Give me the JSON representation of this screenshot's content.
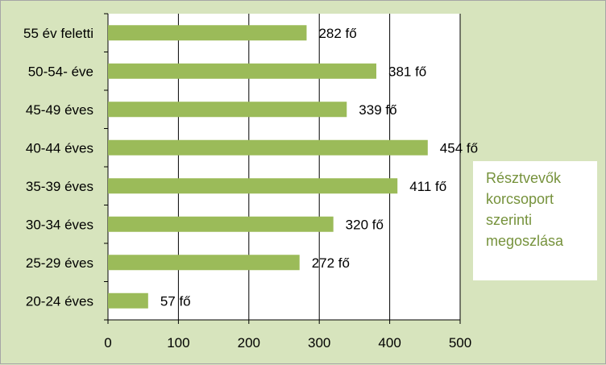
{
  "chart_data": {
    "type": "bar",
    "orientation": "horizontal",
    "title": "Résztvevők korcsoport szerinti megoszlása",
    "categories": [
      "55 év feletti",
      "50-54- éve",
      "45-49 éves",
      "40-44 éves",
      "35-39 éves",
      "30-34 éves",
      "25-29 éves",
      "20-24 éves"
    ],
    "values": [
      282,
      381,
      339,
      454,
      411,
      320,
      272,
      57
    ],
    "data_labels": [
      "282 fő",
      "381 fő",
      "339 fő",
      "454 fő",
      "411 fő",
      "320 fő",
      "272 fő",
      "57 fő"
    ],
    "xticks": [
      "0",
      "100",
      "200",
      "300",
      "400",
      "500"
    ],
    "xlim": [
      0,
      500
    ],
    "xlabel": "",
    "ylabel": "",
    "grid": "vertical",
    "legend": "none",
    "title_placement": "right",
    "colors": {
      "bar": "#9bbb59",
      "background": "#d7e4bd",
      "plot_area": "#ffffff",
      "title": "#76923c",
      "gridline": "#000000"
    }
  }
}
